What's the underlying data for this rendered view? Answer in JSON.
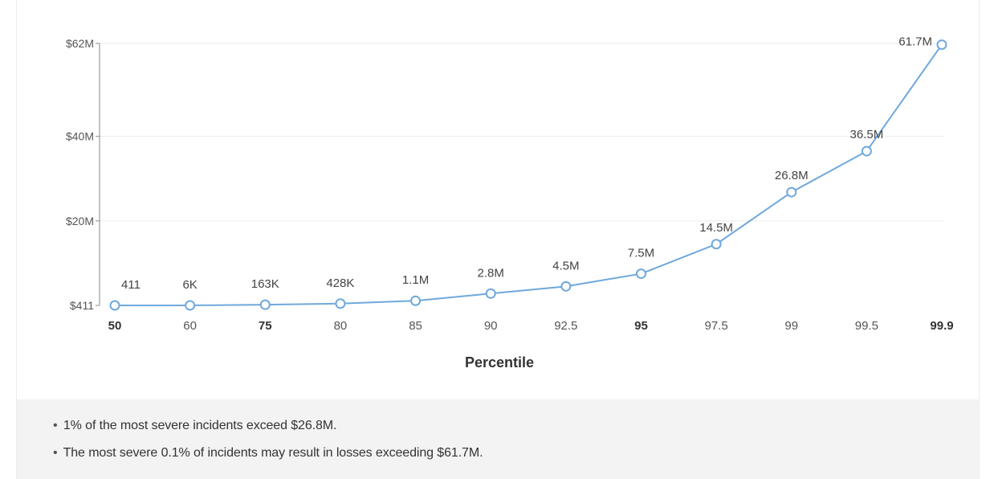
{
  "chart_data": {
    "type": "line",
    "xlabel": "Percentile",
    "categories": [
      "50",
      "60",
      "75",
      "80",
      "85",
      "90",
      "92.5",
      "95",
      "97.5",
      "99",
      "99.5",
      "99.9"
    ],
    "bold_categories": [
      "50",
      "75",
      "95",
      "99.9"
    ],
    "series": [
      {
        "values": [
          411,
          6000,
          163000,
          428000,
          1100000,
          2800000,
          4500000,
          7500000,
          14500000,
          26800000,
          36500000,
          61700000
        ],
        "labels": [
          "411",
          "6K",
          "163K",
          "428K",
          "1.1M",
          "2.8M",
          "4.5M",
          "7.5M",
          "14.5M",
          "26.8M",
          "36.5M",
          "61.7M"
        ]
      }
    ],
    "yticks": [
      {
        "value": 411,
        "label": "$411"
      },
      {
        "value": 20000000,
        "label": "$20M"
      },
      {
        "value": 40000000,
        "label": "$40M"
      },
      {
        "value": 62000000,
        "label": "$62M"
      }
    ],
    "ylim": [
      411,
      62000000
    ],
    "grid": true,
    "line_color": "#6fa8dc",
    "marker_fill": "#ffffff",
    "grid_color": "#ececec",
    "axis_color": "#888888"
  },
  "notes": [
    "1% of the most severe incidents exceed $26.8M.",
    "The most severe 0.1% of incidents may result in losses exceeding $61.7M."
  ],
  "note_bullet": "•",
  "colors": {
    "footer_background": "#f3f3f3",
    "text": "#333333"
  }
}
